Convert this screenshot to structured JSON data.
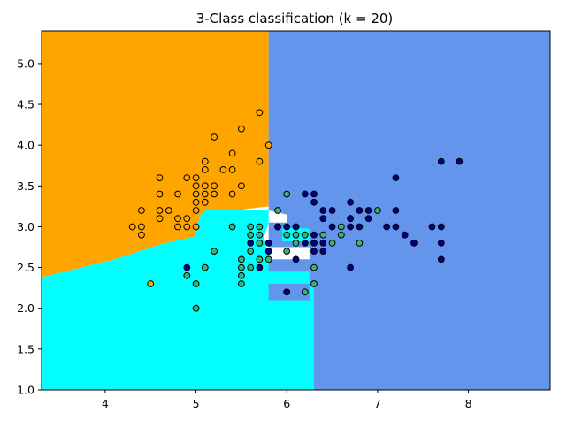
{
  "chart_data": {
    "type": "scatter",
    "title": "3-Class classification (k = 20)",
    "xlabel": "",
    "ylabel": "",
    "xlim": [
      3.3,
      8.9
    ],
    "ylim": [
      1.0,
      5.4
    ],
    "xticks": [
      4,
      5,
      6,
      7,
      8
    ],
    "yticks": [
      1.0,
      1.5,
      2.0,
      2.5,
      3.0,
      3.5,
      4.0,
      4.5,
      5.0
    ],
    "xtick_labels": [
      "4",
      "5",
      "6",
      "7",
      "8"
    ],
    "ytick_labels": [
      "1.0",
      "1.5",
      "2.0",
      "2.5",
      "3.0",
      "3.5",
      "4.0",
      "4.5",
      "5.0"
    ],
    "grid": false,
    "legend": null,
    "colors": {
      "region_class0": "#FFA500",
      "region_class1": "#00FFFF",
      "region_class2": "#6495ED",
      "point_class0": "#FFA500",
      "point_class1": "#3CB371",
      "point_class2": "#00008B",
      "point_edge": "#000000"
    },
    "decision_regions": [
      {
        "class": 0,
        "polygon": [
          [
            3.3,
            5.4
          ],
          [
            5.8,
            5.4
          ],
          [
            5.8,
            3.25
          ],
          [
            5.05,
            3.15
          ],
          [
            4.98,
            2.88
          ],
          [
            4.6,
            2.78
          ],
          [
            4.1,
            2.6
          ],
          [
            3.3,
            2.38
          ]
        ]
      },
      {
        "class": 1,
        "polygon": [
          [
            3.3,
            2.38
          ],
          [
            4.1,
            2.6
          ],
          [
            4.6,
            2.78
          ],
          [
            4.98,
            2.88
          ],
          [
            5.05,
            3.15
          ],
          [
            5.1,
            3.2
          ],
          [
            5.8,
            3.2
          ],
          [
            5.8,
            3.05
          ],
          [
            5.75,
            2.88
          ],
          [
            5.78,
            2.7
          ],
          [
            5.83,
            2.6
          ],
          [
            6.25,
            2.6
          ],
          [
            6.25,
            2.45
          ],
          [
            6.3,
            2.45
          ],
          [
            6.3,
            1.0
          ],
          [
            3.3,
            1.0
          ]
        ]
      },
      {
        "class": 2,
        "polygon": [
          [
            5.8,
            5.4
          ],
          [
            8.9,
            5.4
          ],
          [
            8.9,
            1.0
          ],
          [
            6.3,
            1.0
          ],
          [
            6.3,
            2.27
          ],
          [
            6.25,
            2.27
          ],
          [
            6.25,
            2.1
          ],
          [
            5.8,
            2.1
          ],
          [
            5.8,
            2.3
          ],
          [
            6.25,
            2.3
          ],
          [
            6.25,
            2.45
          ],
          [
            5.8,
            2.45
          ],
          [
            5.8,
            2.6
          ],
          [
            6.25,
            2.6
          ],
          [
            6.25,
            2.75
          ],
          [
            5.8,
            2.75
          ],
          [
            5.8,
            3.05
          ],
          [
            6.0,
            3.05
          ],
          [
            6.0,
            3.15
          ],
          [
            5.8,
            3.2
          ]
        ]
      },
      {
        "class": 1,
        "polygon": [
          [
            5.95,
            2.98
          ],
          [
            6.25,
            2.98
          ],
          [
            6.25,
            2.82
          ],
          [
            5.95,
            2.82
          ]
        ]
      }
    ],
    "series": [
      {
        "class": 0,
        "points": [
          [
            4.3,
            3.0
          ],
          [
            4.4,
            3.2
          ],
          [
            4.4,
            3.0
          ],
          [
            4.4,
            2.9
          ],
          [
            4.5,
            2.3
          ],
          [
            4.6,
            3.6
          ],
          [
            4.6,
            3.4
          ],
          [
            4.6,
            3.2
          ],
          [
            4.6,
            3.1
          ],
          [
            4.7,
            3.2
          ],
          [
            4.8,
            3.4
          ],
          [
            4.8,
            3.1
          ],
          [
            4.8,
            3.0
          ],
          [
            4.9,
            3.6
          ],
          [
            4.9,
            3.1
          ],
          [
            4.9,
            3.0
          ],
          [
            5.0,
            3.6
          ],
          [
            5.0,
            3.5
          ],
          [
            5.0,
            3.4
          ],
          [
            5.0,
            3.3
          ],
          [
            5.0,
            3.2
          ],
          [
            5.0,
            3.0
          ],
          [
            5.1,
            3.8
          ],
          [
            5.1,
            3.7
          ],
          [
            5.1,
            3.5
          ],
          [
            5.1,
            3.4
          ],
          [
            5.1,
            3.3
          ],
          [
            5.2,
            4.1
          ],
          [
            5.2,
            3.5
          ],
          [
            5.2,
            3.4
          ],
          [
            5.3,
            3.7
          ],
          [
            5.4,
            3.9
          ],
          [
            5.4,
            3.7
          ],
          [
            5.4,
            3.4
          ],
          [
            5.5,
            4.2
          ],
          [
            5.5,
            3.5
          ],
          [
            5.7,
            4.4
          ],
          [
            5.7,
            3.8
          ],
          [
            5.8,
            4.0
          ]
        ]
      },
      {
        "class": 1,
        "points": [
          [
            4.9,
            2.4
          ],
          [
            5.0,
            2.3
          ],
          [
            5.0,
            2.0
          ],
          [
            5.1,
            2.5
          ],
          [
            5.2,
            2.7
          ],
          [
            5.4,
            3.0
          ],
          [
            5.5,
            2.6
          ],
          [
            5.5,
            2.5
          ],
          [
            5.5,
            2.4
          ],
          [
            5.5,
            2.3
          ],
          [
            5.6,
            3.0
          ],
          [
            5.6,
            2.9
          ],
          [
            5.6,
            2.7
          ],
          [
            5.6,
            2.5
          ],
          [
            5.7,
            3.0
          ],
          [
            5.7,
            2.9
          ],
          [
            5.7,
            2.8
          ],
          [
            5.7,
            2.6
          ],
          [
            5.8,
            2.7
          ],
          [
            5.8,
            2.6
          ],
          [
            5.9,
            3.2
          ],
          [
            5.9,
            3.0
          ],
          [
            6.0,
            3.4
          ],
          [
            6.0,
            2.9
          ],
          [
            6.0,
            2.7
          ],
          [
            6.1,
            3.0
          ],
          [
            6.1,
            2.9
          ],
          [
            6.1,
            2.8
          ],
          [
            6.2,
            2.9
          ],
          [
            6.2,
            2.2
          ],
          [
            6.3,
            2.5
          ],
          [
            6.3,
            2.3
          ],
          [
            6.4,
            2.9
          ],
          [
            6.5,
            2.8
          ],
          [
            6.6,
            3.0
          ],
          [
            6.6,
            2.9
          ],
          [
            6.7,
            3.1
          ],
          [
            6.8,
            2.8
          ],
          [
            7.0,
            3.2
          ]
        ]
      },
      {
        "class": 2,
        "points": [
          [
            4.9,
            2.5
          ],
          [
            5.6,
            2.8
          ],
          [
            5.7,
            2.5
          ],
          [
            5.8,
            2.8
          ],
          [
            5.8,
            2.7
          ],
          [
            5.9,
            3.0
          ],
          [
            6.0,
            3.0
          ],
          [
            6.0,
            2.2
          ],
          [
            6.1,
            3.0
          ],
          [
            6.1,
            2.6
          ],
          [
            6.2,
            3.4
          ],
          [
            6.2,
            2.8
          ],
          [
            6.3,
            3.4
          ],
          [
            6.3,
            3.3
          ],
          [
            6.3,
            2.9
          ],
          [
            6.3,
            2.8
          ],
          [
            6.3,
            2.7
          ],
          [
            6.4,
            3.2
          ],
          [
            6.4,
            3.1
          ],
          [
            6.4,
            2.8
          ],
          [
            6.4,
            2.7
          ],
          [
            6.5,
            3.2
          ],
          [
            6.5,
            3.0
          ],
          [
            6.7,
            3.3
          ],
          [
            6.7,
            3.1
          ],
          [
            6.7,
            3.0
          ],
          [
            6.7,
            2.5
          ],
          [
            6.8,
            3.2
          ],
          [
            6.8,
            3.0
          ],
          [
            6.9,
            3.2
          ],
          [
            6.9,
            3.1
          ],
          [
            7.1,
            3.0
          ],
          [
            7.2,
            3.6
          ],
          [
            7.2,
            3.2
          ],
          [
            7.2,
            3.0
          ],
          [
            7.3,
            2.9
          ],
          [
            7.4,
            2.8
          ],
          [
            7.6,
            3.0
          ],
          [
            7.7,
            3.8
          ],
          [
            7.7,
            3.0
          ],
          [
            7.7,
            2.8
          ],
          [
            7.7,
            2.6
          ],
          [
            7.9,
            3.8
          ]
        ]
      }
    ]
  }
}
